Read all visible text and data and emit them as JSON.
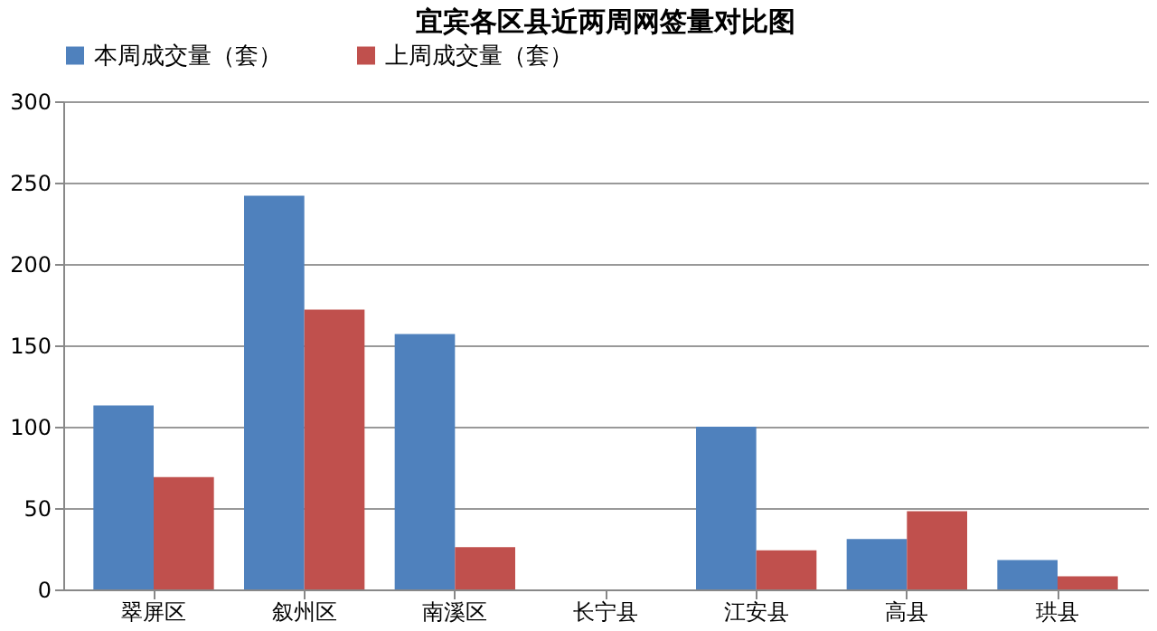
{
  "chart_data": {
    "type": "bar",
    "title": "宜宾各区县近两周网签量对比图",
    "categories": [
      "翠屏区",
      "叙州区",
      "南溪区",
      "长宁县",
      "江安县",
      "高县",
      "珙县"
    ],
    "series": [
      {
        "name": "本周成交量（套）",
        "color": "#4f81bd",
        "values": [
          113,
          242,
          157,
          0,
          100,
          31,
          18
        ]
      },
      {
        "name": "上周成交量（套）",
        "color": "#c0504d",
        "values": [
          69,
          172,
          26,
          0,
          24,
          48,
          8
        ]
      }
    ],
    "ylim": [
      0,
      300
    ],
    "yticks": [
      0,
      50,
      100,
      150,
      200,
      250,
      300
    ],
    "grid": "y",
    "legend": "top"
  }
}
